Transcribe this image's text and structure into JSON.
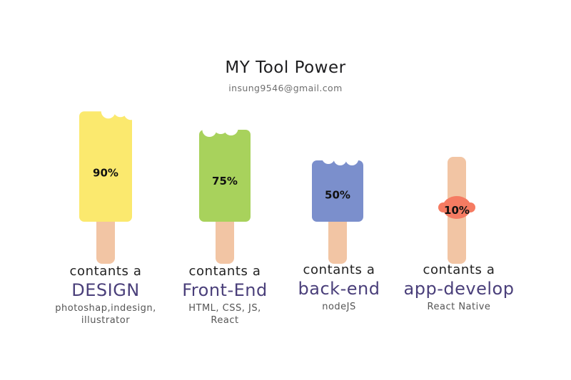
{
  "header": {
    "title": "MY Tool Power",
    "email": "insung9546@gmail.com"
  },
  "chart_data": {
    "type": "bar",
    "title": "MY Tool Power",
    "categories": [
      "DESIGN",
      "Front-End",
      "back-end",
      "app-develop"
    ],
    "values": [
      90,
      75,
      50,
      10
    ],
    "value_labels": [
      "90%",
      "75%",
      "50%",
      "10%"
    ],
    "colors": [
      "#fbe96e",
      "#a8d25c",
      "#7b8fcc",
      "#f57b62"
    ],
    "stick_color": "#f2c5a4",
    "ylim": [
      0,
      100
    ]
  },
  "captions": [
    {
      "head": "contants a",
      "name": "DESIGN",
      "tools": [
        "photoshap,indesign,",
        "illustrator"
      ]
    },
    {
      "head": "contants a",
      "name": "Front-End",
      "tools": [
        "HTML, CSS, JS,",
        "React"
      ]
    },
    {
      "head": "contants a",
      "name": "back-end",
      "tools": [
        "nodeJS"
      ]
    },
    {
      "head": "contants a",
      "name": "app-develop",
      "tools": [
        "React Native"
      ]
    }
  ]
}
